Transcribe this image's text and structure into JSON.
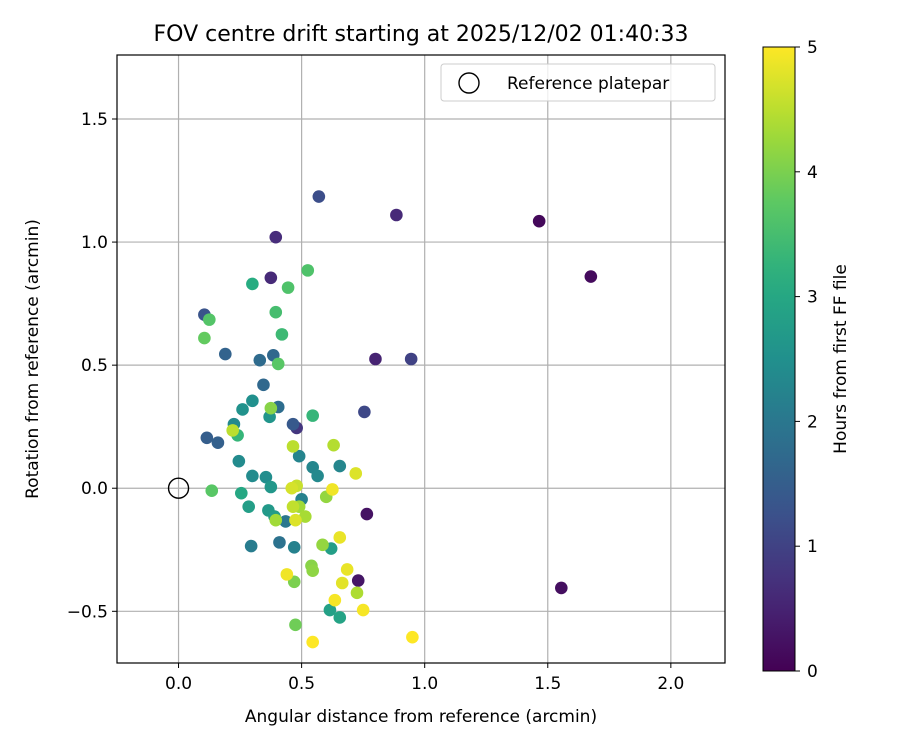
{
  "chart_data": {
    "type": "scatter",
    "title": "FOV centre drift starting at 2025/12/02 01:40:33",
    "xlabel": "Angular distance from reference (arcmin)",
    "ylabel": "Rotation from reference (arcmin)",
    "xlim": [
      -0.25,
      2.22
    ],
    "ylim": [
      -0.71,
      1.76
    ],
    "xticks": [
      0.0,
      0.5,
      1.0,
      1.5,
      2.0
    ],
    "xtick_labels": [
      "0.0",
      "0.5",
      "1.0",
      "1.5",
      "2.0"
    ],
    "yticks": [
      -0.5,
      0.0,
      0.5,
      1.0,
      1.5
    ],
    "ytick_labels": [
      "−0.5",
      "0.0",
      "0.5",
      "1.0",
      "1.5"
    ],
    "grid": true,
    "legend": {
      "position": "top-right",
      "label": "Reference platepar"
    },
    "reference_point": {
      "x": 0.0,
      "y": 0.0
    },
    "colorbar": {
      "label": "Hours from first FF file",
      "colormap": "viridis",
      "range": [
        0,
        5
      ],
      "ticks": [
        0,
        1,
        2,
        3,
        4,
        5
      ],
      "tick_labels": [
        "0",
        "1",
        "2",
        "3",
        "4",
        "5"
      ]
    },
    "points": [
      {
        "x": 1.465,
        "y": 1.085,
        "h": 0.1
      },
      {
        "x": 1.675,
        "y": 0.86,
        "h": 0.15
      },
      {
        "x": 1.555,
        "y": -0.405,
        "h": 0.2
      },
      {
        "x": 0.765,
        "y": -0.105,
        "h": 0.25
      },
      {
        "x": 0.73,
        "y": -0.375,
        "h": 0.3
      },
      {
        "x": 0.8,
        "y": 0.525,
        "h": 0.5
      },
      {
        "x": 0.885,
        "y": 1.11,
        "h": 0.6
      },
      {
        "x": 0.375,
        "y": 0.855,
        "h": 0.6
      },
      {
        "x": 0.395,
        "y": 1.02,
        "h": 0.65
      },
      {
        "x": 0.48,
        "y": 0.245,
        "h": 0.8
      },
      {
        "x": 0.945,
        "y": 0.525,
        "h": 1.0
      },
      {
        "x": 0.755,
        "y": 0.31,
        "h": 1.1
      },
      {
        "x": 0.57,
        "y": 1.185,
        "h": 1.2
      },
      {
        "x": 0.105,
        "y": 0.705,
        "h": 1.3
      },
      {
        "x": 0.465,
        "y": 0.26,
        "h": 1.4
      },
      {
        "x": 0.115,
        "y": 0.205,
        "h": 1.5
      },
      {
        "x": 0.16,
        "y": 0.185,
        "h": 1.55
      },
      {
        "x": 0.19,
        "y": 0.545,
        "h": 1.6
      },
      {
        "x": 0.345,
        "y": 0.42,
        "h": 1.7
      },
      {
        "x": 0.385,
        "y": 0.54,
        "h": 1.7
      },
      {
        "x": 0.33,
        "y": 0.52,
        "h": 1.75
      },
      {
        "x": 0.405,
        "y": 0.33,
        "h": 1.8
      },
      {
        "x": 0.41,
        "y": -0.22,
        "h": 1.9
      },
      {
        "x": 0.435,
        "y": -0.135,
        "h": 2.0
      },
      {
        "x": 0.295,
        "y": -0.235,
        "h": 2.1
      },
      {
        "x": 0.47,
        "y": -0.24,
        "h": 2.2
      },
      {
        "x": 0.5,
        "y": -0.045,
        "h": 2.2
      },
      {
        "x": 0.49,
        "y": 0.13,
        "h": 2.25
      },
      {
        "x": 0.545,
        "y": 0.085,
        "h": 2.3
      },
      {
        "x": 0.565,
        "y": 0.05,
        "h": 2.35
      },
      {
        "x": 0.655,
        "y": 0.09,
        "h": 2.3
      },
      {
        "x": 0.225,
        "y": 0.26,
        "h": 2.35
      },
      {
        "x": 0.245,
        "y": 0.11,
        "h": 2.4
      },
      {
        "x": 0.3,
        "y": 0.05,
        "h": 2.4
      },
      {
        "x": 0.355,
        "y": 0.045,
        "h": 2.45
      },
      {
        "x": 0.3,
        "y": 0.355,
        "h": 2.5
      },
      {
        "x": 0.26,
        "y": 0.32,
        "h": 2.55
      },
      {
        "x": 0.37,
        "y": 0.29,
        "h": 2.6
      },
      {
        "x": 0.375,
        "y": 0.005,
        "h": 2.65
      },
      {
        "x": 0.365,
        "y": -0.09,
        "h": 2.7
      },
      {
        "x": 0.39,
        "y": -0.115,
        "h": 2.75
      },
      {
        "x": 0.285,
        "y": -0.075,
        "h": 2.8
      },
      {
        "x": 0.62,
        "y": -0.245,
        "h": 2.8
      },
      {
        "x": 0.615,
        "y": -0.495,
        "h": 2.85
      },
      {
        "x": 0.655,
        "y": -0.525,
        "h": 2.9
      },
      {
        "x": 0.255,
        "y": -0.02,
        "h": 3.0
      },
      {
        "x": 0.3,
        "y": 0.83,
        "h": 3.1
      },
      {
        "x": 0.545,
        "y": 0.295,
        "h": 3.3
      },
      {
        "x": 0.24,
        "y": 0.215,
        "h": 3.3
      },
      {
        "x": 0.42,
        "y": 0.625,
        "h": 3.4
      },
      {
        "x": 0.395,
        "y": 0.715,
        "h": 3.5
      },
      {
        "x": 0.525,
        "y": 0.885,
        "h": 3.6
      },
      {
        "x": 0.445,
        "y": 0.815,
        "h": 3.6
      },
      {
        "x": 0.125,
        "y": 0.685,
        "h": 3.65
      },
      {
        "x": 0.405,
        "y": 0.505,
        "h": 3.7
      },
      {
        "x": 0.135,
        "y": -0.01,
        "h": 3.7
      },
      {
        "x": 0.105,
        "y": 0.61,
        "h": 3.8
      },
      {
        "x": 0.475,
        "y": -0.555,
        "h": 3.9
      },
      {
        "x": 0.47,
        "y": -0.38,
        "h": 4.0
      },
      {
        "x": 0.375,
        "y": 0.325,
        "h": 4.1
      },
      {
        "x": 0.54,
        "y": -0.315,
        "h": 4.1
      },
      {
        "x": 0.545,
        "y": -0.335,
        "h": 4.15
      },
      {
        "x": 0.585,
        "y": -0.23,
        "h": 4.2
      },
      {
        "x": 0.6,
        "y": -0.035,
        "h": 4.2
      },
      {
        "x": 0.395,
        "y": -0.13,
        "h": 4.3
      },
      {
        "x": 0.49,
        "y": -0.075,
        "h": 4.3
      },
      {
        "x": 0.515,
        "y": -0.115,
        "h": 4.35
      },
      {
        "x": 0.725,
        "y": -0.425,
        "h": 4.4
      },
      {
        "x": 0.63,
        "y": 0.175,
        "h": 4.45
      },
      {
        "x": 0.465,
        "y": 0.17,
        "h": 4.5
      },
      {
        "x": 0.22,
        "y": 0.235,
        "h": 4.5
      },
      {
        "x": 0.465,
        "y": -0.075,
        "h": 4.55
      },
      {
        "x": 0.48,
        "y": 0.01,
        "h": 4.6
      },
      {
        "x": 0.46,
        "y": 0.0,
        "h": 4.7
      },
      {
        "x": 0.475,
        "y": -0.13,
        "h": 4.75
      },
      {
        "x": 0.72,
        "y": 0.06,
        "h": 4.75
      },
      {
        "x": 0.665,
        "y": -0.385,
        "h": 4.8
      },
      {
        "x": 0.685,
        "y": -0.33,
        "h": 4.85
      },
      {
        "x": 0.655,
        "y": -0.2,
        "h": 4.85
      },
      {
        "x": 0.625,
        "y": -0.005,
        "h": 4.9
      },
      {
        "x": 0.44,
        "y": -0.35,
        "h": 4.9
      },
      {
        "x": 0.635,
        "y": -0.455,
        "h": 4.95
      },
      {
        "x": 0.75,
        "y": -0.495,
        "h": 4.95
      },
      {
        "x": 0.545,
        "y": -0.625,
        "h": 5.0
      },
      {
        "x": 0.95,
        "y": -0.605,
        "h": 5.0
      }
    ]
  }
}
